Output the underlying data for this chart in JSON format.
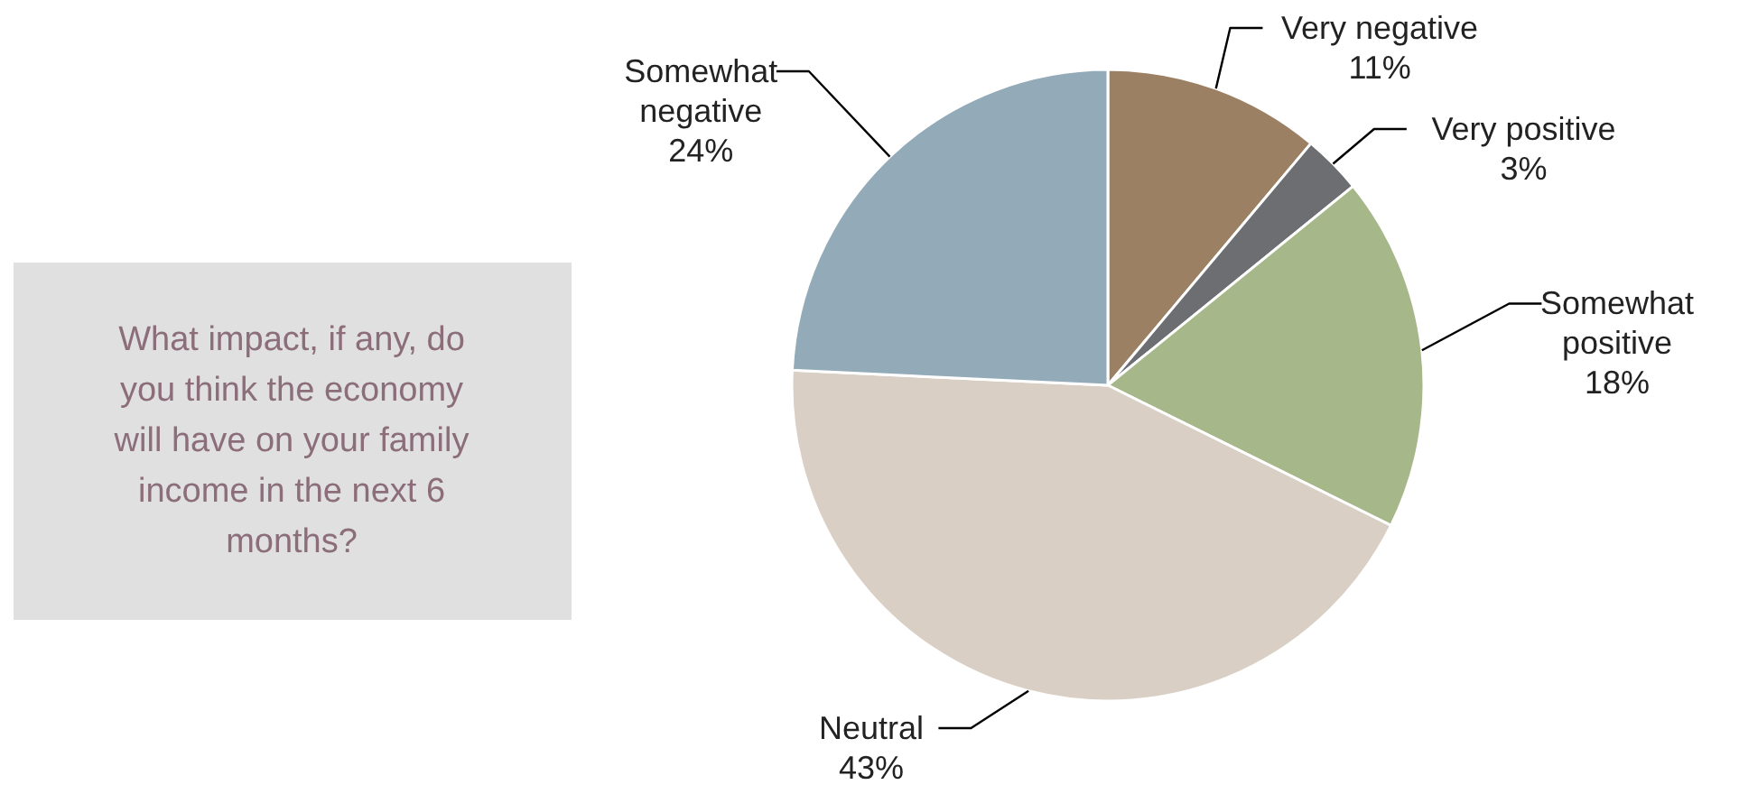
{
  "chart_data": {
    "type": "pie",
    "title": "What impact, if any, do you think the economy will have on your family income in the next 6 months?",
    "categories": [
      "Very negative",
      "Very positive",
      "Somewhat positive",
      "Neutral",
      "Somewhat negative"
    ],
    "values": [
      11,
      3,
      18,
      43,
      24
    ],
    "value_labels": [
      "11%",
      "3%",
      "18%",
      "43%",
      "24%"
    ],
    "colors": [
      "#9c8063",
      "#6d6e71",
      "#a6b88a",
      "#d9cfc4",
      "#93aab9"
    ]
  }
}
